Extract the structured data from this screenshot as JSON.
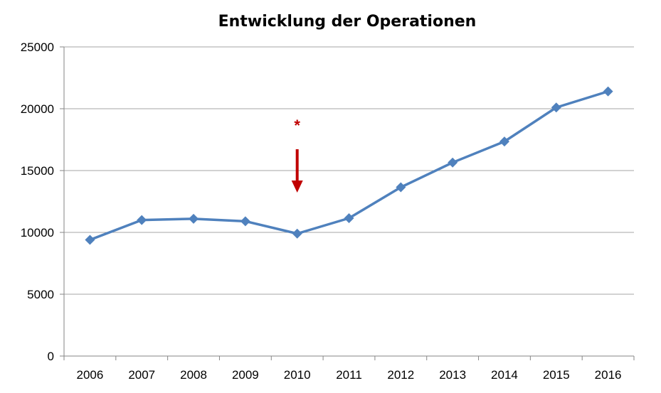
{
  "chart_data": {
    "type": "line",
    "title": "Entwicklung der Operationen",
    "xlabel": "",
    "ylabel": "",
    "categories": [
      "2006",
      "2007",
      "2008",
      "2009",
      "2010",
      "2011",
      "2012",
      "2013",
      "2014",
      "2015",
      "2016"
    ],
    "series": [
      {
        "values": [
          9400,
          11000,
          11100,
          10900,
          9900,
          11150,
          13650,
          15650,
          17350,
          20100,
          21400
        ],
        "color": "#4f81bd",
        "marker": "diamond"
      }
    ],
    "ylim": [
      0,
      25000
    ],
    "yticks": [
      0,
      5000,
      10000,
      15000,
      20000,
      25000
    ],
    "grid": true,
    "legend": "none",
    "annotations": [
      {
        "category": "2010",
        "text": "*",
        "marker": "arrow-down",
        "color": "#c00000"
      }
    ]
  }
}
